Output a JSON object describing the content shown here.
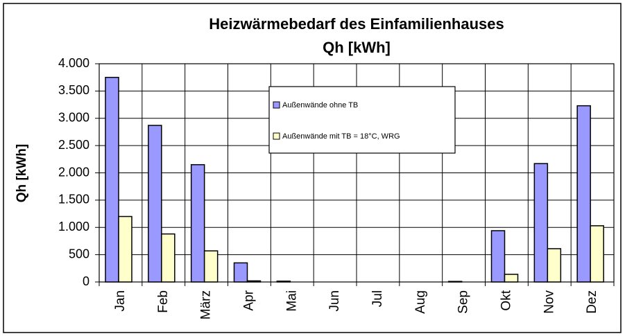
{
  "chart_data": {
    "type": "bar",
    "title": "Heizwärmebedarf des Einfamilienhauses",
    "subtitle": "Qh [kWh]",
    "y_label": "Qh [kWh]",
    "categories": [
      "Jan",
      "Feb",
      "März",
      "Apr",
      "Mai",
      "Jun",
      "Jul",
      "Aug",
      "Sep",
      "Okt",
      "Nov",
      "Dez"
    ],
    "series": [
      {
        "name": "Außenwände ohne TB",
        "color": "#9999ff",
        "values": [
          3750,
          2870,
          2150,
          350,
          15,
          0,
          0,
          0,
          10,
          940,
          2170,
          3230
        ]
      },
      {
        "name": "Außenwände mit TB = 18°C, WRG",
        "color": "#ffffcc",
        "values": [
          1200,
          880,
          570,
          20,
          0,
          0,
          0,
          0,
          0,
          140,
          610,
          1030
        ]
      }
    ],
    "ylim": [
      0,
      4000
    ],
    "yticks": [
      0,
      500,
      {
        "value": 1000,
        "label": "1.000"
      },
      {
        "value": 1500,
        "label": "1.500"
      },
      {
        "value": 2000,
        "label": "2.000"
      },
      {
        "value": 2500,
        "label": "2.500"
      },
      {
        "value": 3000,
        "label": "3.000"
      },
      {
        "value": 3500,
        "label": "3.500"
      },
      {
        "value": 4000,
        "label": "4.000"
      }
    ],
    "grid": true
  }
}
